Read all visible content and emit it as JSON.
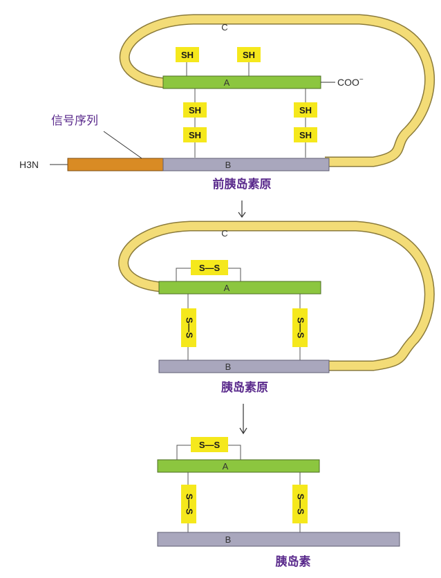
{
  "chains": {
    "A": "A",
    "B": "B",
    "C": "C"
  },
  "groups": {
    "sh": "SH",
    "ss": "S—S"
  },
  "termini": {
    "n": "H3N",
    "c": "COO"
  },
  "signal_label": "信号序列",
  "stages": {
    "preproinsulin": "前胰岛素原",
    "proinsulin": "胰岛素原",
    "insulin": "胰岛素"
  },
  "colors": {
    "chain_a": "#8cc63f",
    "chain_b": "#a9a7bd",
    "chain_c": "#f3dc77",
    "signal": "#d98b24",
    "tag": "#f5e81c"
  }
}
